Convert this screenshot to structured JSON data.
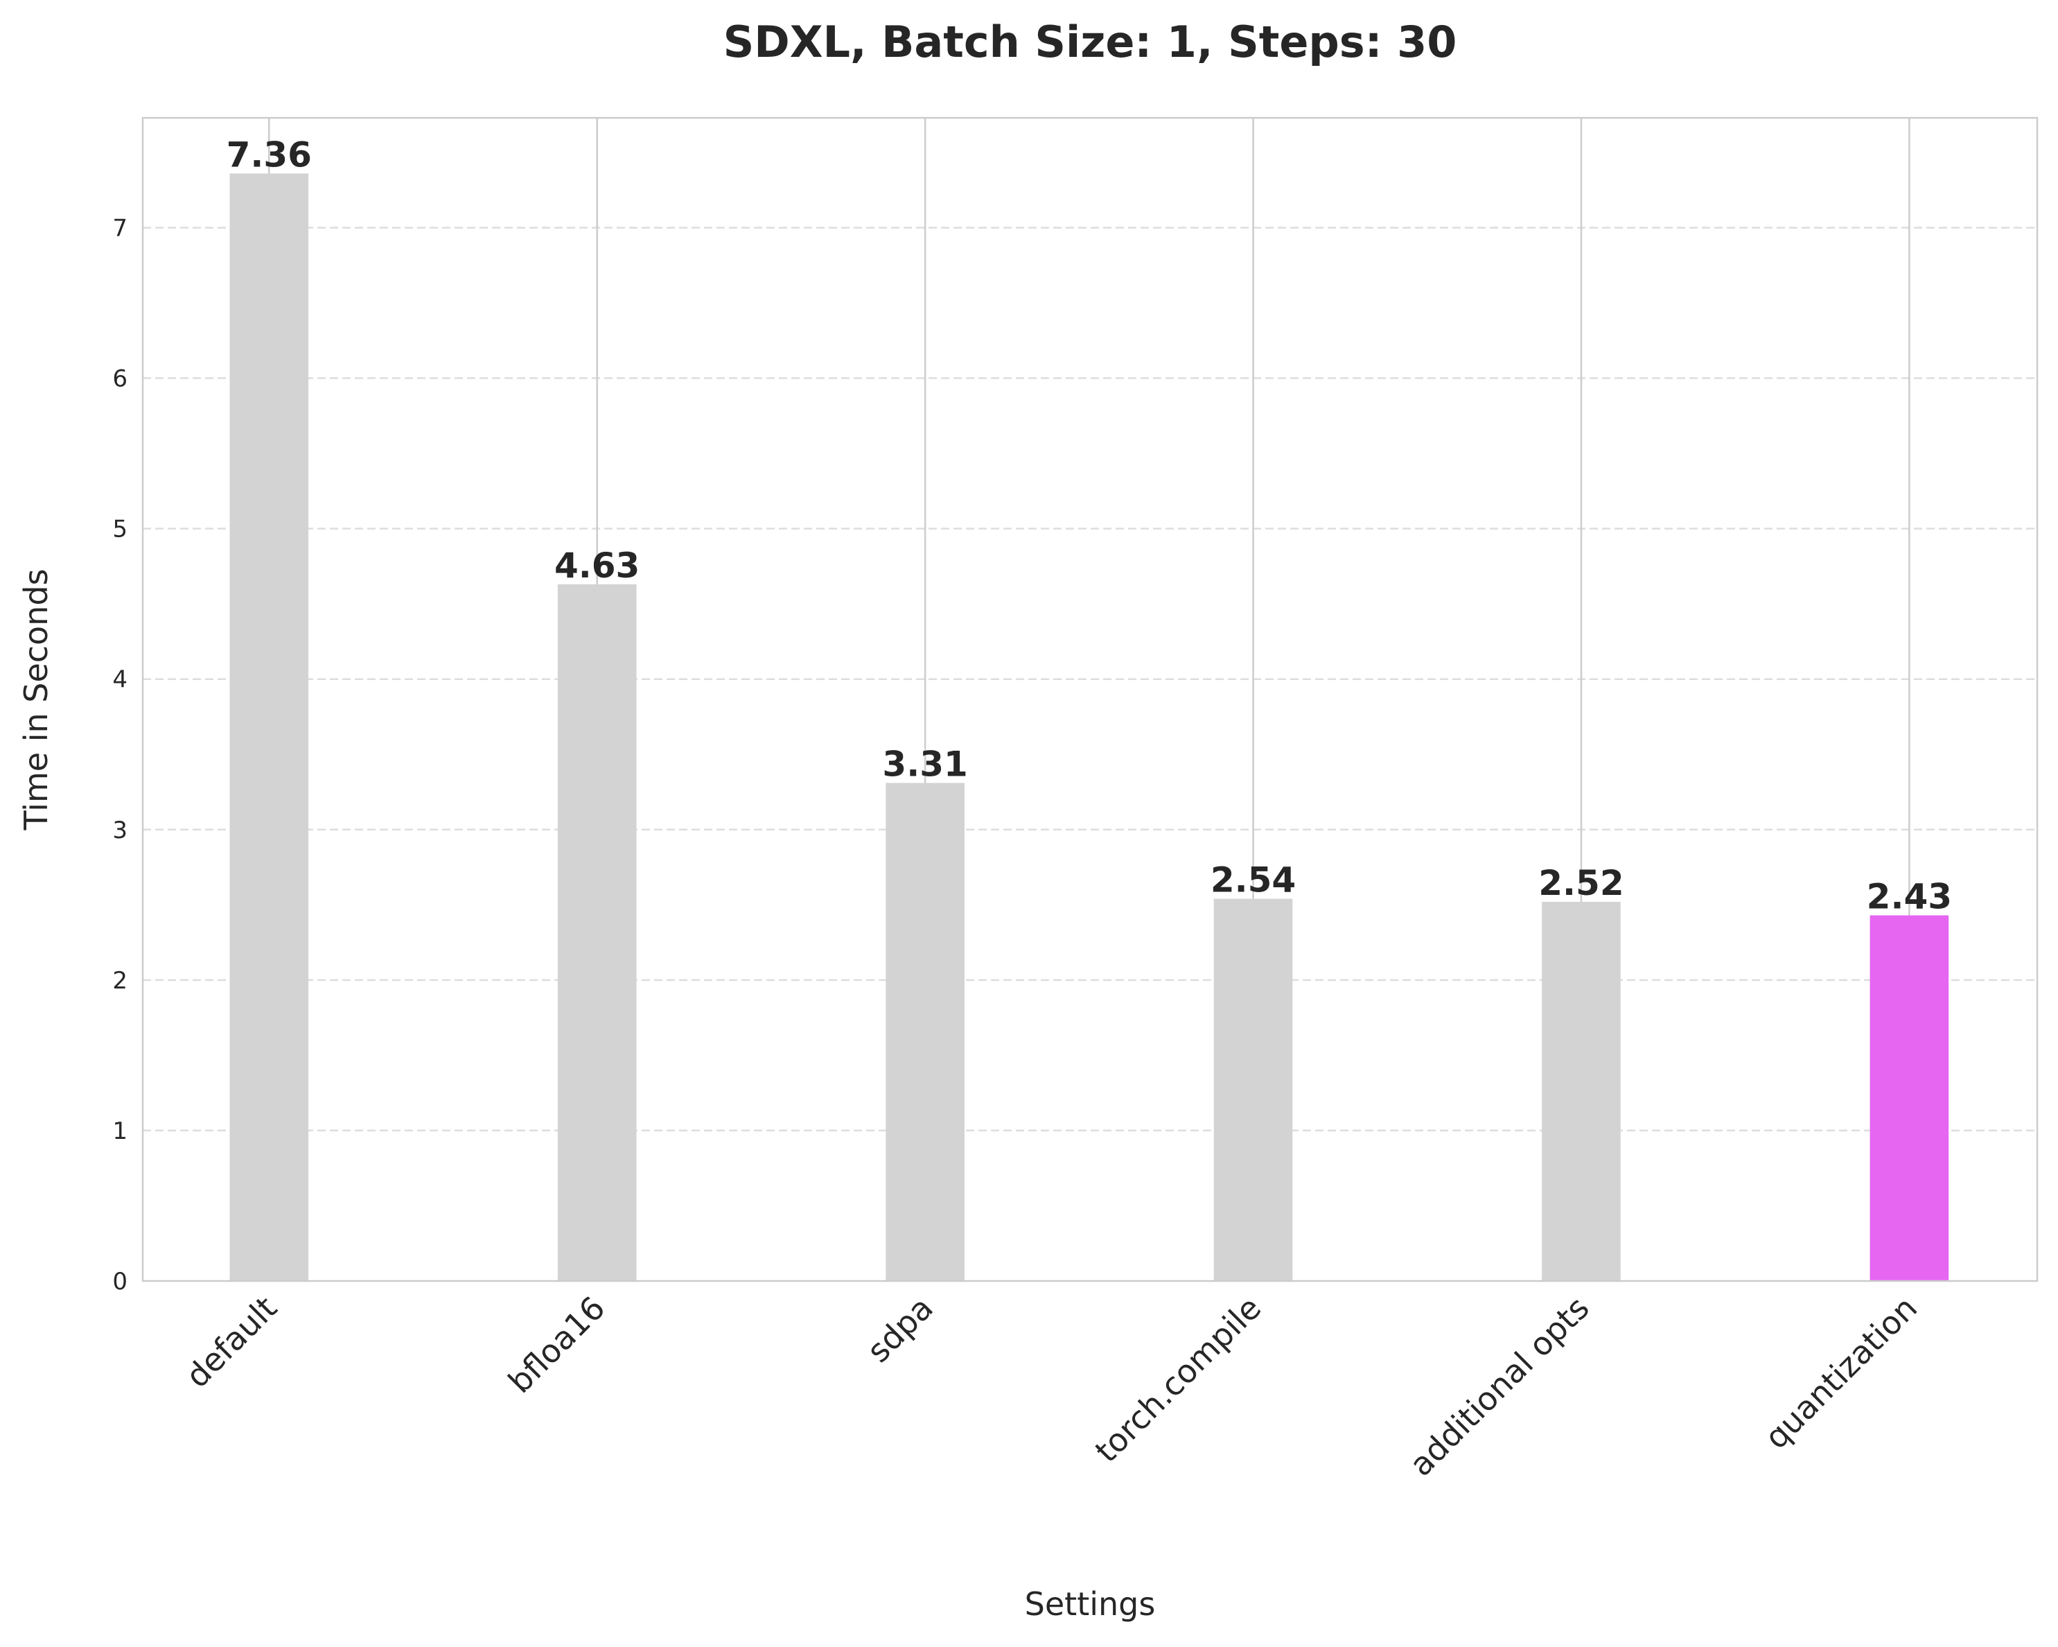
{
  "chart_data": {
    "type": "bar",
    "title": "SDXL, Batch Size: 1, Steps: 30",
    "xlabel": "Settings",
    "ylabel": "Time in Seconds",
    "categories": [
      "default",
      "bfloa16",
      "sdpa",
      "torch.compile",
      "additional opts",
      "quantization"
    ],
    "values": [
      7.36,
      4.63,
      3.31,
      2.54,
      2.52,
      2.43
    ],
    "data_labels": [
      "7.36",
      "4.63",
      "3.31",
      "2.54",
      "2.52",
      "2.43"
    ],
    "colors": [
      "#d3d3d3",
      "#d3d3d3",
      "#d3d3d3",
      "#d3d3d3",
      "#d3d3d3",
      "#e666f2"
    ],
    "ylim": [
      0,
      7.73
    ],
    "yticks": [
      0,
      1,
      2,
      3,
      4,
      5,
      6,
      7
    ],
    "grid": true,
    "legend": "none"
  }
}
